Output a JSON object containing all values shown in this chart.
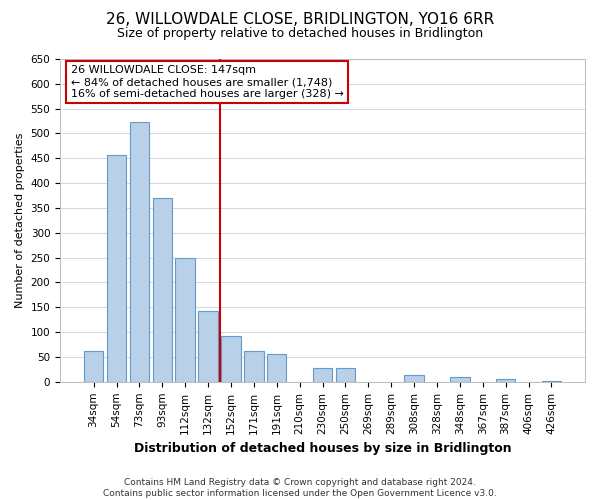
{
  "title": "26, WILLOWDALE CLOSE, BRIDLINGTON, YO16 6RR",
  "subtitle": "Size of property relative to detached houses in Bridlington",
  "xlabel": "Distribution of detached houses by size in Bridlington",
  "ylabel": "Number of detached properties",
  "bar_labels": [
    "34sqm",
    "54sqm",
    "73sqm",
    "93sqm",
    "112sqm",
    "132sqm",
    "152sqm",
    "171sqm",
    "191sqm",
    "210sqm",
    "230sqm",
    "250sqm",
    "269sqm",
    "289sqm",
    "308sqm",
    "328sqm",
    "348sqm",
    "367sqm",
    "387sqm",
    "406sqm",
    "426sqm"
  ],
  "bar_values": [
    62,
    457,
    523,
    370,
    250,
    142,
    93,
    62,
    57,
    0,
    28,
    28,
    0,
    0,
    13,
    0,
    10,
    0,
    5,
    0,
    2
  ],
  "bar_color": "#b8d0e8",
  "bar_edge_color": "#6699cc",
  "ylim": [
    0,
    650
  ],
  "yticks": [
    0,
    50,
    100,
    150,
    200,
    250,
    300,
    350,
    400,
    450,
    500,
    550,
    600,
    650
  ],
  "vline_x": 5.5,
  "vline_color": "#cc0000",
  "annotation_title": "26 WILLOWDALE CLOSE: 147sqm",
  "annotation_line1": "← 84% of detached houses are smaller (1,748)",
  "annotation_line2": "16% of semi-detached houses are larger (328) →",
  "annotation_box_color": "#ffffff",
  "annotation_box_edge": "#cc0000",
  "footer1": "Contains HM Land Registry data © Crown copyright and database right 2024.",
  "footer2": "Contains public sector information licensed under the Open Government Licence v3.0.",
  "bg_color": "#ffffff",
  "grid_color": "#ccd8e8",
  "title_fontsize": 11,
  "subtitle_fontsize": 9,
  "xlabel_fontsize": 9,
  "ylabel_fontsize": 8,
  "tick_fontsize": 7.5,
  "footer_fontsize": 6.5,
  "annotation_fontsize": 8
}
